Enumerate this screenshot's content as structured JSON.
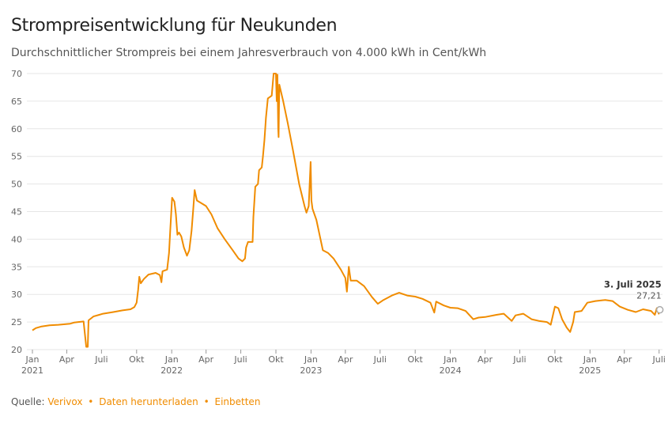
{
  "title": "Strompreisentwicklung für Neukunden",
  "subtitle": "Durchschnittlicher Strompreis bei einem Jahresverbrauch von 4.000 kWh in Cent/kWh",
  "footer": {
    "source_label": "Quelle:",
    "source_link": "Verivox",
    "download_link": "Daten herunterladen",
    "embed_link": "Einbetten",
    "separator": "•"
  },
  "colors": {
    "line": "#f08c00",
    "grid": "#e6e6e6",
    "text": "#666666"
  },
  "chart_data": {
    "type": "line",
    "title": "Strompreisentwicklung für Neukunden",
    "subtitle": "Durchschnittlicher Strompreis bei einem Jahresverbrauch von 4.000 kWh in Cent/kWh",
    "ylim": [
      20,
      70
    ],
    "yticks": [
      20,
      25,
      30,
      35,
      40,
      45,
      50,
      55,
      60,
      65,
      70
    ],
    "xlim": [
      "2021-01-01",
      "2025-07-10"
    ],
    "xticks": [
      {
        "date": "2021-01-01",
        "label": "Jan",
        "year": "2021"
      },
      {
        "date": "2021-04-01",
        "label": "Apr",
        "year": ""
      },
      {
        "date": "2021-07-01",
        "label": "Juli",
        "year": ""
      },
      {
        "date": "2021-10-01",
        "label": "Okt",
        "year": ""
      },
      {
        "date": "2022-01-01",
        "label": "Jan",
        "year": "2022"
      },
      {
        "date": "2022-04-01",
        "label": "Apr",
        "year": ""
      },
      {
        "date": "2022-07-01",
        "label": "Juli",
        "year": ""
      },
      {
        "date": "2022-10-01",
        "label": "Okt",
        "year": ""
      },
      {
        "date": "2023-01-01",
        "label": "Jan",
        "year": "2023"
      },
      {
        "date": "2023-04-01",
        "label": "Apr",
        "year": ""
      },
      {
        "date": "2023-07-01",
        "label": "Juli",
        "year": ""
      },
      {
        "date": "2023-10-01",
        "label": "Okt",
        "year": ""
      },
      {
        "date": "2024-01-01",
        "label": "Jan",
        "year": "2024"
      },
      {
        "date": "2024-04-01",
        "label": "Apr",
        "year": ""
      },
      {
        "date": "2024-07-01",
        "label": "Juli",
        "year": ""
      },
      {
        "date": "2024-10-01",
        "label": "Okt",
        "year": ""
      },
      {
        "date": "2025-01-01",
        "label": "Jan",
        "year": "2025"
      },
      {
        "date": "2025-04-01",
        "label": "Apr",
        "year": ""
      },
      {
        "date": "2025-07-01",
        "label": "Juli",
        "year": ""
      }
    ],
    "grid": true,
    "series": [
      {
        "values": [
          [
            "2021-01-01",
            23.5
          ],
          [
            "2021-01-10",
            23.9
          ],
          [
            "2021-01-25",
            24.2
          ],
          [
            "2021-02-15",
            24.4
          ],
          [
            "2021-03-10",
            24.5
          ],
          [
            "2021-04-10",
            24.7
          ],
          [
            "2021-04-20",
            24.9
          ],
          [
            "2021-05-15",
            25.1
          ],
          [
            "2021-05-22",
            20.5
          ],
          [
            "2021-05-26",
            20.5
          ],
          [
            "2021-05-28",
            25.3
          ],
          [
            "2021-06-10",
            26.0
          ],
          [
            "2021-06-25",
            26.3
          ],
          [
            "2021-07-05",
            26.5
          ],
          [
            "2021-08-01",
            26.8
          ],
          [
            "2021-08-25",
            27.1
          ],
          [
            "2021-09-15",
            27.3
          ],
          [
            "2021-09-25",
            27.7
          ],
          [
            "2021-10-01",
            28.5
          ],
          [
            "2021-10-05",
            30.8
          ],
          [
            "2021-10-08",
            33.2
          ],
          [
            "2021-10-12",
            32.0
          ],
          [
            "2021-10-20",
            32.8
          ],
          [
            "2021-11-01",
            33.6
          ],
          [
            "2021-11-20",
            33.9
          ],
          [
            "2021-12-01",
            33.5
          ],
          [
            "2021-12-05",
            32.2
          ],
          [
            "2021-12-08",
            34.2
          ],
          [
            "2021-12-20",
            34.5
          ],
          [
            "2021-12-25",
            37.5
          ],
          [
            "2021-12-28",
            41.5
          ],
          [
            "2022-01-02",
            47.5
          ],
          [
            "2022-01-08",
            46.8
          ],
          [
            "2022-01-12",
            44.5
          ],
          [
            "2022-01-16",
            40.8
          ],
          [
            "2022-01-20",
            41.2
          ],
          [
            "2022-01-26",
            40.5
          ],
          [
            "2022-02-02",
            38.5
          ],
          [
            "2022-02-10",
            37.0
          ],
          [
            "2022-02-16",
            38.0
          ],
          [
            "2022-02-22",
            41.5
          ],
          [
            "2022-02-26",
            45.0
          ],
          [
            "2022-03-02",
            48.9
          ],
          [
            "2022-03-08",
            47.0
          ],
          [
            "2022-03-20",
            46.5
          ],
          [
            "2022-04-01",
            46.0
          ],
          [
            "2022-04-15",
            44.5
          ],
          [
            "2022-05-01",
            42.0
          ],
          [
            "2022-05-20",
            40.0
          ],
          [
            "2022-06-10",
            38.0
          ],
          [
            "2022-06-25",
            36.5
          ],
          [
            "2022-07-05",
            36.0
          ],
          [
            "2022-07-12",
            36.5
          ],
          [
            "2022-07-15",
            38.5
          ],
          [
            "2022-07-20",
            39.5
          ],
          [
            "2022-08-01",
            39.5
          ],
          [
            "2022-08-03",
            44.0
          ],
          [
            "2022-08-08",
            49.5
          ],
          [
            "2022-08-15",
            50.0
          ],
          [
            "2022-08-18",
            52.5
          ],
          [
            "2022-08-25",
            53.0
          ],
          [
            "2022-08-28",
            55.0
          ],
          [
            "2022-09-01",
            58.0
          ],
          [
            "2022-09-05",
            62.0
          ],
          [
            "2022-09-10",
            65.5
          ],
          [
            "2022-09-20",
            66.0
          ],
          [
            "2022-09-25",
            70.0
          ],
          [
            "2022-10-01",
            70.0
          ],
          [
            "2022-10-03",
            65.0
          ],
          [
            "2022-10-05",
            69.8
          ],
          [
            "2022-10-07",
            60.0
          ],
          [
            "2022-10-08",
            58.5
          ],
          [
            "2022-10-10",
            68.0
          ],
          [
            "2022-10-20",
            65.0
          ],
          [
            "2022-11-01",
            61.0
          ],
          [
            "2022-11-15",
            56.0
          ],
          [
            "2022-12-01",
            50.0
          ],
          [
            "2022-12-15",
            46.0
          ],
          [
            "2022-12-20",
            44.8
          ],
          [
            "2022-12-26",
            46.0
          ],
          [
            "2022-12-31",
            54.0
          ],
          [
            "2023-01-02",
            47.0
          ],
          [
            "2023-01-05",
            45.5
          ],
          [
            "2023-01-15",
            43.5
          ],
          [
            "2023-02-01",
            38.0
          ],
          [
            "2023-02-15",
            37.5
          ],
          [
            "2023-03-01",
            36.5
          ],
          [
            "2023-03-20",
            34.5
          ],
          [
            "2023-04-01",
            33.0
          ],
          [
            "2023-04-05",
            30.5
          ],
          [
            "2023-04-10",
            35.0
          ],
          [
            "2023-04-15",
            32.5
          ],
          [
            "2023-05-01",
            32.5
          ],
          [
            "2023-05-20",
            31.5
          ],
          [
            "2023-06-10",
            29.5
          ],
          [
            "2023-06-25",
            28.3
          ],
          [
            "2023-07-10",
            29.0
          ],
          [
            "2023-08-01",
            29.8
          ],
          [
            "2023-08-20",
            30.3
          ],
          [
            "2023-09-10",
            29.8
          ],
          [
            "2023-10-01",
            29.6
          ],
          [
            "2023-10-20",
            29.2
          ],
          [
            "2023-11-10",
            28.5
          ],
          [
            "2023-11-20",
            26.7
          ],
          [
            "2023-11-25",
            28.7
          ],
          [
            "2023-12-15",
            28.0
          ],
          [
            "2024-01-01",
            27.6
          ],
          [
            "2024-01-20",
            27.5
          ],
          [
            "2024-02-10",
            27.0
          ],
          [
            "2024-03-01",
            25.5
          ],
          [
            "2024-03-15",
            25.8
          ],
          [
            "2024-04-01",
            25.9
          ],
          [
            "2024-05-01",
            26.3
          ],
          [
            "2024-05-20",
            26.5
          ],
          [
            "2024-06-10",
            25.2
          ],
          [
            "2024-06-20",
            26.2
          ],
          [
            "2024-07-10",
            26.5
          ],
          [
            "2024-08-01",
            25.5
          ],
          [
            "2024-08-20",
            25.2
          ],
          [
            "2024-09-10",
            25.0
          ],
          [
            "2024-09-20",
            24.5
          ],
          [
            "2024-10-01",
            27.8
          ],
          [
            "2024-10-10",
            27.5
          ],
          [
            "2024-10-20",
            25.5
          ],
          [
            "2024-11-01",
            24.0
          ],
          [
            "2024-11-10",
            23.2
          ],
          [
            "2024-11-18",
            25.0
          ],
          [
            "2024-11-22",
            26.8
          ],
          [
            "2024-12-10",
            27.0
          ],
          [
            "2024-12-25",
            28.5
          ],
          [
            "2025-01-15",
            28.8
          ],
          [
            "2025-02-10",
            29.0
          ],
          [
            "2025-03-01",
            28.8
          ],
          [
            "2025-03-20",
            27.8
          ],
          [
            "2025-04-10",
            27.2
          ],
          [
            "2025-05-01",
            26.8
          ],
          [
            "2025-05-20",
            27.3
          ],
          [
            "2025-06-10",
            27.0
          ],
          [
            "2025-06-20",
            26.3
          ],
          [
            "2025-06-25",
            27.5
          ],
          [
            "2025-06-30",
            26.5
          ],
          [
            "2025-07-03",
            27.21
          ]
        ]
      }
    ],
    "annotation": {
      "date": "2025-07-03",
      "label": "3. Juli 2025",
      "value_label": "27,21",
      "value": 27.21
    }
  }
}
